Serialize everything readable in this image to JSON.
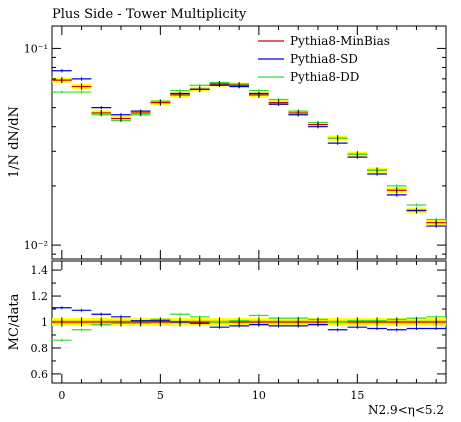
{
  "chart_data": [
    {
      "type": "line",
      "title": "Plus Side - Tower Multiplicity",
      "ylabel": "1/N dN/dN",
      "yscale": "log",
      "ylim": [
        0.0085,
        0.13
      ],
      "xlim": [
        -0.5,
        19.5
      ],
      "bin_edges": [
        -0.5,
        0.5,
        1.5,
        2.5,
        3.5,
        4.5,
        5.5,
        6.5,
        7.5,
        8.5,
        9.5,
        10.5,
        11.5,
        12.5,
        13.5,
        14.5,
        15.5,
        16.5,
        17.5,
        18.5,
        19.5
      ],
      "yticks": [
        {
          "value": 0.1,
          "label": "10⁻¹"
        },
        {
          "value": 0.01,
          "label": "10⁻²"
        }
      ],
      "legend_position": "top-right",
      "data": [
        0.069,
        0.064,
        0.047,
        0.044,
        0.047,
        0.053,
        0.058,
        0.062,
        0.066,
        0.065,
        0.058,
        0.053,
        0.047,
        0.041,
        0.035,
        0.029,
        0.024,
        0.019,
        0.015,
        0.013
      ],
      "series": [
        {
          "name": "Pythia8-MinBias",
          "color": "#cc0000",
          "values": [
            0.069,
            0.064,
            0.047,
            0.044,
            0.047,
            0.053,
            0.058,
            0.062,
            0.066,
            0.065,
            0.058,
            0.053,
            0.047,
            0.041,
            0.035,
            0.029,
            0.024,
            0.019,
            0.015,
            0.013
          ]
        },
        {
          "name": "Pythia8-SD",
          "color": "#0000dd",
          "values": [
            0.077,
            0.07,
            0.05,
            0.046,
            0.048,
            0.054,
            0.059,
            0.062,
            0.065,
            0.064,
            0.059,
            0.052,
            0.046,
            0.04,
            0.033,
            0.028,
            0.023,
            0.018,
            0.015,
            0.0125
          ]
        },
        {
          "name": "Pythia8-DD",
          "color": "#33dd33",
          "values": [
            0.06,
            0.06,
            0.046,
            0.043,
            0.046,
            0.054,
            0.061,
            0.065,
            0.067,
            0.066,
            0.061,
            0.055,
            0.048,
            0.042,
            0.035,
            0.029,
            0.024,
            0.02,
            0.016,
            0.0135
          ]
        }
      ]
    },
    {
      "type": "line",
      "ylabel": "MC/data",
      "xlabel": "N2.9<η<5.2",
      "ylim": [
        0.53,
        1.47
      ],
      "xlim": [
        -0.5,
        19.5
      ],
      "xticks": [
        0,
        5,
        10,
        15
      ],
      "yticks": [
        {
          "value": 0.6,
          "label": "0.6"
        },
        {
          "value": 0.8,
          "label": "0.8"
        },
        {
          "value": 1.0,
          "label": "1"
        },
        {
          "value": 1.2,
          "label": "1.2"
        },
        {
          "value": 1.4,
          "label": "1.4"
        }
      ],
      "band": {
        "lower": 0.97,
        "upper": 1.03,
        "inner_lower": 0.985,
        "inner_upper": 1.015
      },
      "series": [
        {
          "name": "Pythia8-MinBias",
          "color": "#cc0000",
          "values": [
            1,
            1,
            1,
            1,
            1,
            1,
            1,
            1,
            1,
            1,
            1,
            1,
            1,
            1,
            1,
            1,
            1,
            1,
            1,
            1
          ]
        },
        {
          "name": "Pythia8-SD",
          "color": "#0000dd",
          "values": [
            1.11,
            1.09,
            1.06,
            1.04,
            1.01,
            1.01,
            1.0,
            0.99,
            0.96,
            0.97,
            0.98,
            0.97,
            0.97,
            0.98,
            0.94,
            0.96,
            0.95,
            0.94,
            0.95,
            0.95
          ]
        },
        {
          "name": "Pythia8-DD",
          "color": "#33dd33",
          "values": [
            0.86,
            0.94,
            0.98,
            0.99,
            0.99,
            1.02,
            1.06,
            1.04,
            1.0,
            1.01,
            1.05,
            1.03,
            1.03,
            1.02,
            1.0,
            1.01,
            1.01,
            1.02,
            1.03,
            1.04
          ]
        }
      ]
    }
  ]
}
